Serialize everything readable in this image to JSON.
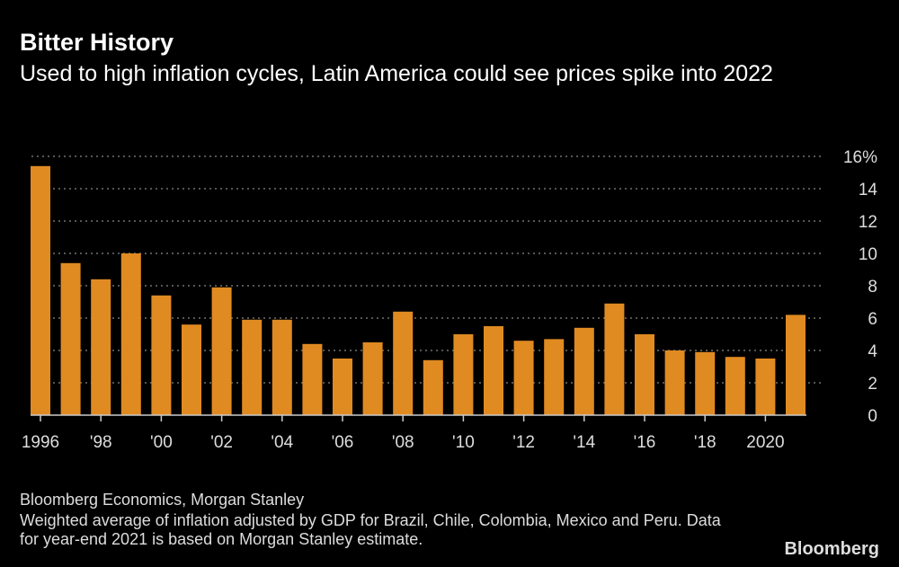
{
  "title": "Bitter History",
  "subtitle": "Used to high inflation cycles, Latin America could see prices spike into 2022",
  "source": "Bloomberg Economics, Morgan Stanley",
  "note": "Weighted average of inflation adjusted by GDP for Brazil, Chile, Colombia, Mexico and Peru. Data for year-end 2021 is based on Morgan Stanley estimate.",
  "logo": "Bloomberg",
  "chart_data": {
    "type": "bar",
    "categories": [
      1996,
      1997,
      1998,
      1999,
      2000,
      2001,
      2002,
      2003,
      2004,
      2005,
      2006,
      2007,
      2008,
      2009,
      2010,
      2011,
      2012,
      2013,
      2014,
      2015,
      2016,
      2017,
      2018,
      2019,
      2020,
      2021
    ],
    "values": [
      15.4,
      9.4,
      8.4,
      10.0,
      7.4,
      5.6,
      7.9,
      5.9,
      5.9,
      4.4,
      3.5,
      4.5,
      6.4,
      3.4,
      5.0,
      5.5,
      4.6,
      4.7,
      5.4,
      6.9,
      5.0,
      4.0,
      3.9,
      3.6,
      3.5,
      6.2
    ],
    "x_tick_labels": [
      {
        "year": 1996,
        "label": "1996"
      },
      {
        "year": 1998,
        "label": "'98"
      },
      {
        "year": 2000,
        "label": "'00"
      },
      {
        "year": 2002,
        "label": "'02"
      },
      {
        "year": 2004,
        "label": "'04"
      },
      {
        "year": 2006,
        "label": "'06"
      },
      {
        "year": 2008,
        "label": "'08"
      },
      {
        "year": 2010,
        "label": "'10"
      },
      {
        "year": 2012,
        "label": "'12"
      },
      {
        "year": 2014,
        "label": "'14"
      },
      {
        "year": 2016,
        "label": "'16"
      },
      {
        "year": 2018,
        "label": "'18"
      },
      {
        "year": 2020,
        "label": "2020"
      }
    ],
    "y_ticks": [
      0,
      2,
      4,
      6,
      8,
      10,
      12,
      14,
      16
    ],
    "y_tick_labels": [
      "0",
      "2",
      "4",
      "6",
      "8",
      "10",
      "12",
      "14",
      "16%"
    ],
    "ylim": [
      0,
      16
    ],
    "grid": true,
    "y_axis_position": "right",
    "bar_color": "#e08a22",
    "xlabel": "",
    "ylabel": ""
  }
}
